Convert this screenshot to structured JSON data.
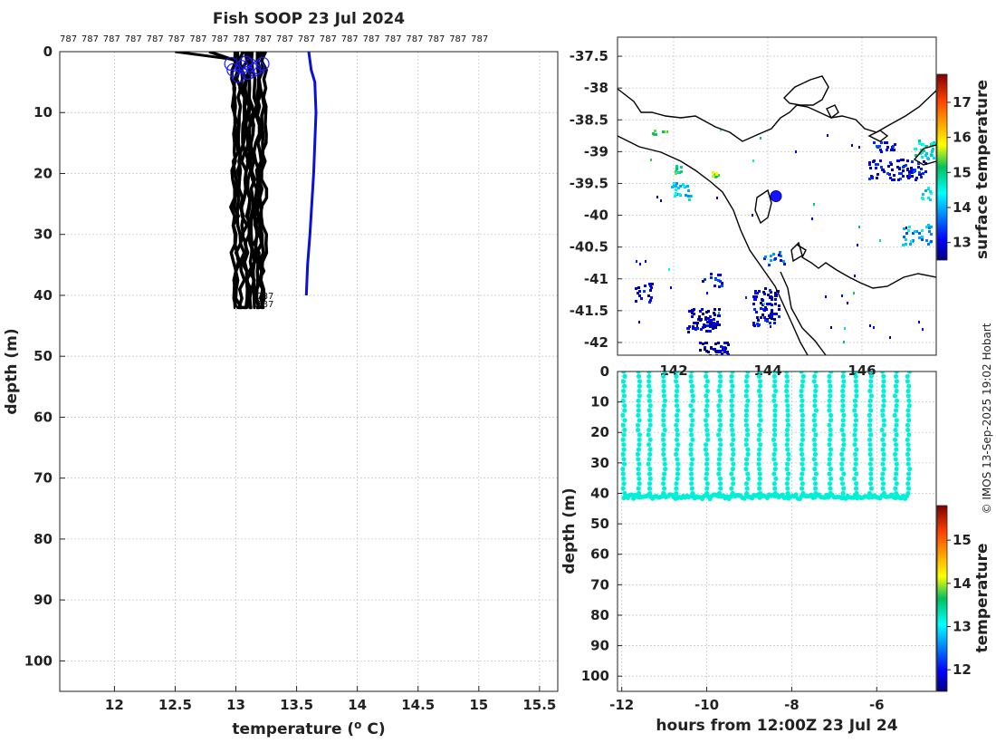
{
  "chart_data": [
    {
      "id": "profile",
      "type": "line",
      "title": "Fish SOOP 23 Jul 2024",
      "xlabel": "temperature (",
      "xlabel_sup": "o",
      "xlabel_tail": " C)",
      "ylabel": "depth (m)",
      "xlim": [
        11.55,
        15.65
      ],
      "ylim": [
        0,
        105
      ],
      "y_reversed": true,
      "xticks": [
        12,
        12.5,
        13,
        13.5,
        14,
        14.5,
        15,
        15.5
      ],
      "xtick_labels": [
        "12",
        "12.5",
        "13",
        "13.5",
        "14",
        "14.5",
        "15",
        "15.5"
      ],
      "yticks": [
        0,
        10,
        20,
        30,
        40,
        50,
        60,
        70,
        80,
        90,
        100
      ],
      "ytick_labels": [
        "0",
        "10",
        "20",
        "30",
        "40",
        "50",
        "60",
        "70",
        "80",
        "90",
        "100"
      ],
      "top_labels": [
        "787",
        "787",
        "787",
        "787",
        "787",
        "787",
        "787",
        "787",
        "787",
        "787",
        "787",
        "787",
        "787",
        "787",
        "787",
        "787",
        "787",
        "787",
        "787",
        "787"
      ],
      "bottom_labels": [
        "787",
        "787"
      ],
      "black_profile_temps": [
        12.98,
        13.0,
        13.02,
        13.05,
        13.07,
        13.09,
        13.11,
        13.13,
        13.15,
        13.17,
        13.19,
        13.21,
        13.23
      ],
      "max_depth": 42,
      "blue_profile": {
        "temp": [
          13.6,
          13.62,
          13.65,
          13.66,
          13.64,
          13.61,
          13.59,
          13.58
        ],
        "depth": [
          0,
          3,
          5,
          10,
          20,
          30,
          35,
          40
        ]
      },
      "circle_temps": [
        12.96,
        12.98,
        13.02,
        13.05,
        13.08,
        13.1,
        13.12,
        13.15,
        13.18,
        13.22
      ],
      "circle_depths": [
        2,
        3,
        4,
        2.5,
        1.8,
        3.5,
        2.2,
        3,
        2.6,
        2
      ]
    },
    {
      "id": "map",
      "type": "heatmap",
      "colorbar_label": "surface temperature",
      "colorbar_ticks": [
        "13",
        "14",
        "15",
        "16",
        "17"
      ],
      "colorbar_range": [
        12.5,
        17.8
      ],
      "ylim": [
        -42.2,
        -37.2
      ],
      "yticks": [
        -37.5,
        -38,
        -38.5,
        -39,
        -39.5,
        -40,
        -40.5,
        -41,
        -41.5,
        -42
      ],
      "ytick_labels": [
        "-37.5",
        "-38",
        "-38.5",
        "-39",
        "-39.5",
        "-40",
        "-40.5",
        "-41",
        "-41.5",
        "-42"
      ],
      "xtick_labels_partial": [
        "142",
        "144",
        "146"
      ],
      "vessel_marker": {
        "lon": 144.25,
        "lat": -39.7
      }
    },
    {
      "id": "timeseries",
      "type": "scatter",
      "xlabel": "hours from 12:00Z 23 Jul 24",
      "ylabel": "depth (m)",
      "colorbar_label": "temperature",
      "colorbar_ticks": [
        "12",
        "13",
        "14",
        "15"
      ],
      "colorbar_range": [
        11.5,
        15.8
      ],
      "xlim": [
        -12.1,
        -4.6
      ],
      "ylim": [
        0,
        105
      ],
      "xticks": [
        -12,
        -10,
        -8,
        -6
      ],
      "xtick_labels": [
        "-12",
        "-10",
        "-8",
        "-6"
      ],
      "yticks": [
        0,
        10,
        20,
        30,
        40,
        50,
        60,
        70,
        80,
        90,
        100
      ],
      "ytick_labels": [
        "0",
        "10",
        "20",
        "30",
        "40",
        "50",
        "60",
        "70",
        "80",
        "90",
        "100"
      ],
      "cast_hours": [
        -11.95,
        -11.6,
        -11.35,
        -11.0,
        -10.7,
        -10.35,
        -10.0,
        -9.7,
        -9.4,
        -9.05,
        -8.75,
        -8.4,
        -8.1,
        -7.75,
        -7.45,
        -7.1,
        -6.8,
        -6.5,
        -6.15,
        -5.85,
        -5.55,
        -5.25
      ],
      "cast_depth": 41,
      "point_temp": 13.2
    }
  ],
  "credit": "© IMOS 13-Sep-2025 19:02 Hobart"
}
